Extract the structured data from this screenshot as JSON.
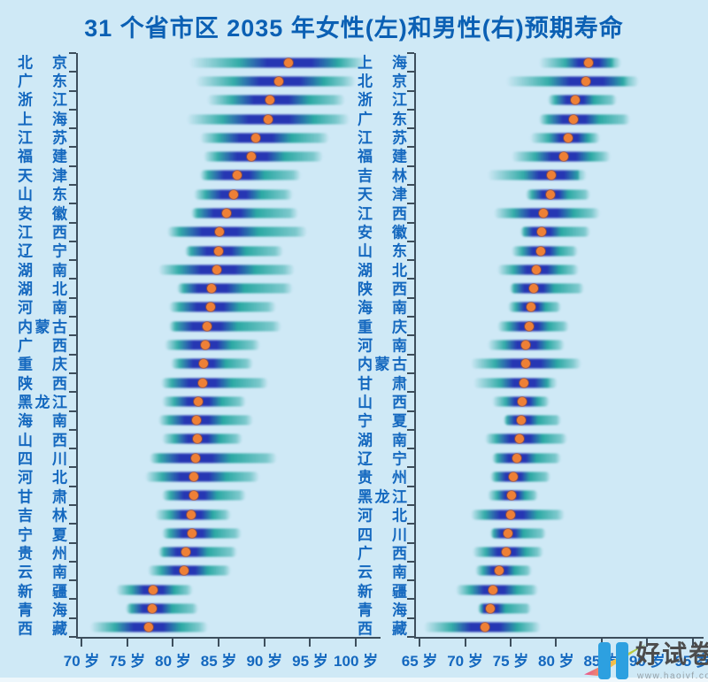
{
  "title": "31 个省市区 2035 年女性(左)和男性(右)预期寿命",
  "watermark": {
    "brand": "好试卷",
    "url": "www.haoivf.com"
  },
  "colors": {
    "background": "#cfe9f6",
    "title_text": "#0b60b4",
    "label_text": "#1468bf",
    "axis": "#3d4e5c",
    "band_teal": "#18a19a",
    "band_blue": "#2636b3",
    "dot_orange": "#ee8036",
    "watermark_blue": "#2da0e0"
  },
  "chart_data": [
    {
      "type": "interval-dot",
      "name": "女性(左)",
      "unit": "岁",
      "grid": false,
      "axis": {
        "min": 69.6,
        "max": 102.7,
        "ticks": [
          {
            "v": 70,
            "label": "70 岁"
          },
          {
            "v": 75,
            "label": "75 岁"
          },
          {
            "v": 80,
            "label": "80 岁"
          },
          {
            "v": 85,
            "label": "85 岁"
          },
          {
            "v": 90,
            "label": "90 岁"
          },
          {
            "v": 95,
            "label": "95 岁"
          },
          {
            "v": 100,
            "label": "100 岁"
          }
        ]
      },
      "rows": [
        {
          "name": "北京",
          "lo": 81.8,
          "mid": 92.6,
          "hi": 101.2
        },
        {
          "name": "广东",
          "lo": 82.5,
          "mid": 91.6,
          "hi": 100.0
        },
        {
          "name": "浙江",
          "lo": 83.7,
          "mid": 90.6,
          "hi": 98.8
        },
        {
          "name": "上海",
          "lo": 81.5,
          "mid": 90.4,
          "hi": 99.3
        },
        {
          "name": "江苏",
          "lo": 83.0,
          "mid": 89.1,
          "hi": 97.1
        },
        {
          "name": "福建",
          "lo": 83.3,
          "mid": 88.6,
          "hi": 96.4
        },
        {
          "name": "天津",
          "lo": 83.0,
          "mid": 87.0,
          "hi": 94.0
        },
        {
          "name": "山东",
          "lo": 82.3,
          "mid": 86.6,
          "hi": 93.1
        },
        {
          "name": "安徽",
          "lo": 82.0,
          "mid": 85.9,
          "hi": 93.7
        },
        {
          "name": "江西",
          "lo": 79.4,
          "mid": 85.1,
          "hi": 94.7
        },
        {
          "name": "辽宁",
          "lo": 81.3,
          "mid": 85.0,
          "hi": 92.1
        },
        {
          "name": "湖南",
          "lo": 78.4,
          "mid": 84.8,
          "hi": 93.3
        },
        {
          "name": "湖北",
          "lo": 80.4,
          "mid": 84.2,
          "hi": 93.1
        },
        {
          "name": "河南",
          "lo": 79.6,
          "mid": 84.1,
          "hi": 91.3
        },
        {
          "name": "内蒙古",
          "lo": 79.6,
          "mid": 83.7,
          "hi": 91.9
        },
        {
          "name": "广西",
          "lo": 79.1,
          "mid": 83.5,
          "hi": 89.5
        },
        {
          "name": "重庆",
          "lo": 79.8,
          "mid": 83.3,
          "hi": 88.8
        },
        {
          "name": "陕西",
          "lo": 78.7,
          "mid": 83.2,
          "hi": 90.4
        },
        {
          "name": "黑龙江",
          "lo": 78.8,
          "mid": 82.8,
          "hi": 88.0
        },
        {
          "name": "海南",
          "lo": 78.4,
          "mid": 82.6,
          "hi": 88.8
        },
        {
          "name": "山西",
          "lo": 78.8,
          "mid": 82.7,
          "hi": 87.6
        },
        {
          "name": "四川",
          "lo": 77.4,
          "mid": 82.5,
          "hi": 91.4
        },
        {
          "name": "河北",
          "lo": 77.0,
          "mid": 82.3,
          "hi": 89.4
        },
        {
          "name": "甘肃",
          "lo": 78.8,
          "mid": 82.3,
          "hi": 88.0
        },
        {
          "name": "吉林",
          "lo": 78.0,
          "mid": 82.0,
          "hi": 86.3
        },
        {
          "name": "宁夏",
          "lo": 78.8,
          "mid": 82.1,
          "hi": 87.5
        },
        {
          "name": "贵州",
          "lo": 78.4,
          "mid": 81.4,
          "hi": 87.0
        },
        {
          "name": "云南",
          "lo": 77.2,
          "mid": 81.2,
          "hi": 86.3
        },
        {
          "name": "新疆",
          "lo": 73.8,
          "mid": 77.8,
          "hi": 82.2
        },
        {
          "name": "青海",
          "lo": 74.8,
          "mid": 77.7,
          "hi": 82.8
        },
        {
          "name": "西藏",
          "lo": 71.0,
          "mid": 77.3,
          "hi": 83.8
        }
      ]
    },
    {
      "type": "interval-dot",
      "name": "男性(右)",
      "unit": "岁",
      "grid": false,
      "axis": {
        "min": 64.6,
        "max": 96.2,
        "ticks": [
          {
            "v": 65,
            "label": "65 岁"
          },
          {
            "v": 70,
            "label": "70 岁"
          },
          {
            "v": 75,
            "label": "75 岁"
          },
          {
            "v": 80,
            "label": "80 岁"
          },
          {
            "v": 85,
            "label": "85 岁"
          },
          {
            "v": 90,
            "label": "90 岁"
          },
          {
            "v": 95,
            "label": "95 岁"
          }
        ]
      },
      "rows": [
        {
          "name": "上海",
          "lo": 78.1,
          "mid": 83.6,
          "hi": 87.2
        },
        {
          "name": "北京",
          "lo": 74.5,
          "mid": 83.3,
          "hi": 89.1
        },
        {
          "name": "浙江",
          "lo": 79.1,
          "mid": 82.1,
          "hi": 86.7
        },
        {
          "name": "广东",
          "lo": 78.1,
          "mid": 81.9,
          "hi": 88.1
        },
        {
          "name": "江苏",
          "lo": 77.1,
          "mid": 81.3,
          "hi": 84.8
        },
        {
          "name": "福建",
          "lo": 75.1,
          "mid": 80.8,
          "hi": 86.0
        },
        {
          "name": "吉林",
          "lo": 72.5,
          "mid": 79.5,
          "hi": 83.4
        },
        {
          "name": "天津",
          "lo": 76.7,
          "mid": 79.4,
          "hi": 83.8
        },
        {
          "name": "江西",
          "lo": 73.2,
          "mid": 78.6,
          "hi": 84.8
        },
        {
          "name": "安徽",
          "lo": 76.1,
          "mid": 78.4,
          "hi": 83.8
        },
        {
          "name": "山东",
          "lo": 75.1,
          "mid": 78.3,
          "hi": 82.4
        },
        {
          "name": "湖北",
          "lo": 73.5,
          "mid": 77.8,
          "hi": 82.5
        },
        {
          "name": "陕西",
          "lo": 74.9,
          "mid": 77.5,
          "hi": 83.1
        },
        {
          "name": "海南",
          "lo": 74.7,
          "mid": 77.2,
          "hi": 80.5
        },
        {
          "name": "重庆",
          "lo": 73.5,
          "mid": 77.0,
          "hi": 81.4
        },
        {
          "name": "河南",
          "lo": 72.5,
          "mid": 76.7,
          "hi": 80.9
        },
        {
          "name": "内蒙古",
          "lo": 70.6,
          "mid": 76.7,
          "hi": 82.8
        },
        {
          "name": "甘肃",
          "lo": 70.9,
          "mid": 76.5,
          "hi": 80.2
        },
        {
          "name": "山西",
          "lo": 73.0,
          "mid": 76.3,
          "hi": 79.3
        },
        {
          "name": "宁夏",
          "lo": 74.2,
          "mid": 76.2,
          "hi": 80.5
        },
        {
          "name": "湖南",
          "lo": 72.2,
          "mid": 76.0,
          "hi": 81.2
        },
        {
          "name": "辽宁",
          "lo": 73.0,
          "mid": 75.7,
          "hi": 80.5
        },
        {
          "name": "贵州",
          "lo": 72.8,
          "mid": 75.3,
          "hi": 79.4
        },
        {
          "name": "黑龙江",
          "lo": 72.5,
          "mid": 75.1,
          "hi": 78.0
        },
        {
          "name": "河北",
          "lo": 70.6,
          "mid": 75.0,
          "hi": 80.9
        },
        {
          "name": "四川",
          "lo": 72.8,
          "mid": 74.7,
          "hi": 78.9
        },
        {
          "name": "广西",
          "lo": 70.8,
          "mid": 74.5,
          "hi": 78.6
        },
        {
          "name": "云南",
          "lo": 71.1,
          "mid": 73.7,
          "hi": 77.3
        },
        {
          "name": "新疆",
          "lo": 69.0,
          "mid": 73.1,
          "hi": 78.0
        },
        {
          "name": "青海",
          "lo": 71.4,
          "mid": 72.8,
          "hi": 77.2
        },
        {
          "name": "西藏",
          "lo": 65.5,
          "mid": 72.2,
          "hi": 78.3
        }
      ]
    }
  ]
}
